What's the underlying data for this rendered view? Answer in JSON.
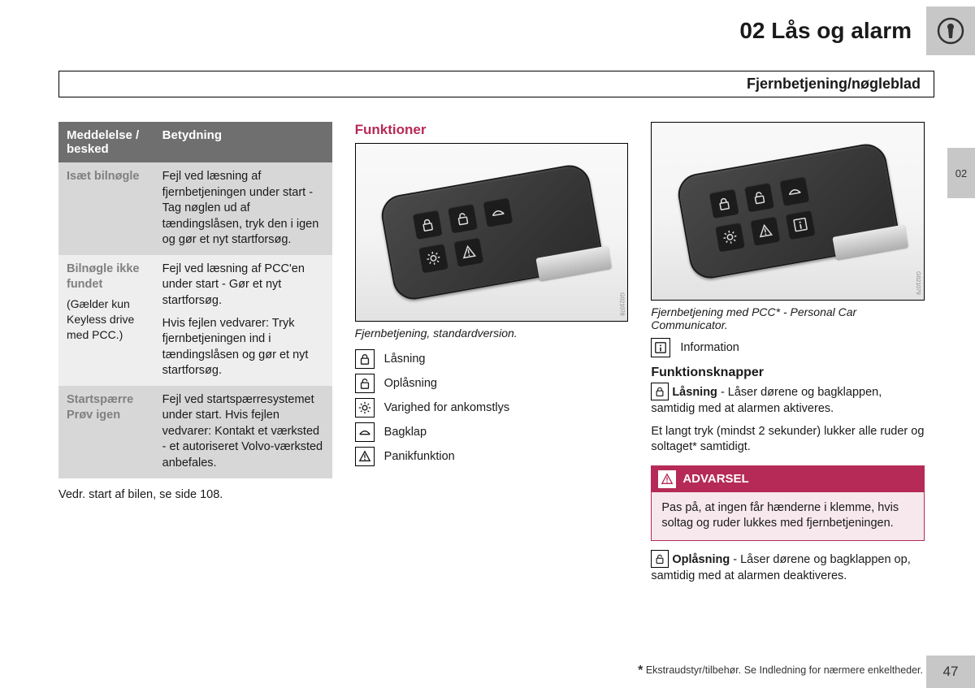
{
  "chapter": {
    "number": "02",
    "title": "02 Lås og alarm"
  },
  "section_title": "Fjernbetjening/nøgleblad",
  "side_tab": "02",
  "table": {
    "head_col1": "Meddelelse / besked",
    "head_col2": "Betydning",
    "rows": [
      {
        "label": "Isæt bilnøgle",
        "sublabel": "",
        "meaning": "Fejl ved læsning af fjernbetjeningen under start - Tag nøglen ud af tændingslåsen, tryk den i igen og gør et nyt startforsøg."
      },
      {
        "label": "Bilnøgle ikke fundet",
        "sublabel": "(Gælder kun Keyless drive med PCC.)",
        "meaning": "Fejl ved læsning af PCC'en under start - Gør et nyt startforsøg.\nHvis fejlen vedvarer: Tryk fjernbetjeningen ind i tændingslåsen og gør et nyt startforsøg."
      },
      {
        "label": "Startspærre Prøv igen",
        "sublabel": "",
        "meaning": "Fejl ved startspærresystemet under start. Hvis fejlen vedvarer: Kontakt et værksted - et autoriseret Volvo-værksted anbefales."
      }
    ],
    "note": "Vedr. start af bilen, se side 108."
  },
  "funktioner": {
    "heading": "Funktioner",
    "caption": "Fjernbetjening, standardversion.",
    "fig_id": "G021078",
    "items": [
      {
        "icon": "lock",
        "label": "Låsning"
      },
      {
        "icon": "unlock",
        "label": "Oplåsning"
      },
      {
        "icon": "light",
        "label": "Varighed for ankomstlys"
      },
      {
        "icon": "trunk",
        "label": "Bagklap"
      },
      {
        "icon": "panic",
        "label": "Panikfunktion"
      }
    ]
  },
  "pcc": {
    "caption": "Fjernbetjening med PCC* - Personal Car Communicator.",
    "fig_id": "G021079",
    "info_item": {
      "icon": "info",
      "label": "Information"
    }
  },
  "funktionsknapper": {
    "heading": "Funktionsknapper",
    "lock_bold": "Låsning",
    "lock_text": " - Låser dørene og bagklappen, samtidig med at alarmen aktiveres.",
    "lock_extra": "Et langt tryk (mindst 2 sekunder) lukker alle ruder og soltaget* samtidigt.",
    "unlock_bold": "Oplåsning",
    "unlock_text": " - Låser dørene og bagklappen op, samtidig med at alarmen deaktiveres."
  },
  "warning": {
    "title": "ADVARSEL",
    "body": "Pas på, at ingen får hænderne i klemme, hvis soltag og ruder lukkes med fjernbetjeningen."
  },
  "footer": {
    "footnote": " Ekstraudstyr/tilbehør. Se Indledning for nærmere enkeltheder.",
    "page": "47"
  },
  "colors": {
    "accent": "#b52a56",
    "grey_bg": "#c7c7c7",
    "table_head": "#6f6f6f"
  }
}
